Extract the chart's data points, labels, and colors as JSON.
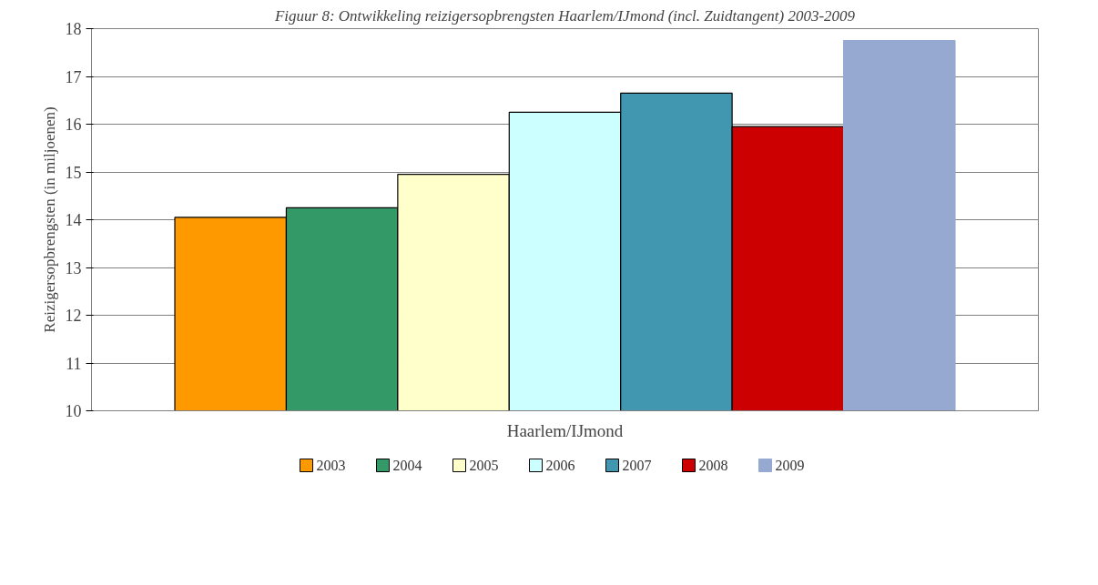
{
  "chart_data": {
    "type": "bar",
    "title": "Figuur 8: Ontwikkeling reizigersopbrengsten Haarlem/IJmond (incl. Zuidtangent) 2003-2009",
    "xlabel": "Haarlem/IJmond",
    "ylabel": "Reizigersopbrengsten (in miljoenen)",
    "categories": [
      null
    ],
    "series": [
      {
        "name": "2003",
        "color": "#ff9900",
        "values": [
          14.05
        ]
      },
      {
        "name": "2004",
        "color": "#339966",
        "values": [
          14.25
        ]
      },
      {
        "name": "2005",
        "color": "#ffffcc",
        "values": [
          14.95
        ]
      },
      {
        "name": "2006",
        "color": "#ccffff",
        "values": [
          16.25
        ]
      },
      {
        "name": "2007",
        "color": "#4297b0",
        "values": [
          16.65
        ]
      },
      {
        "name": "2008",
        "color": "#cc0000",
        "values": [
          15.95
        ]
      },
      {
        "name": "2009",
        "color": "#95a9d1",
        "values": [
          17.75
        ]
      }
    ],
    "ylim": [
      10,
      18
    ],
    "yticks": [
      10,
      11,
      12,
      13,
      14,
      15,
      16,
      17,
      18
    ],
    "grid": "y",
    "legend": "bottom"
  }
}
